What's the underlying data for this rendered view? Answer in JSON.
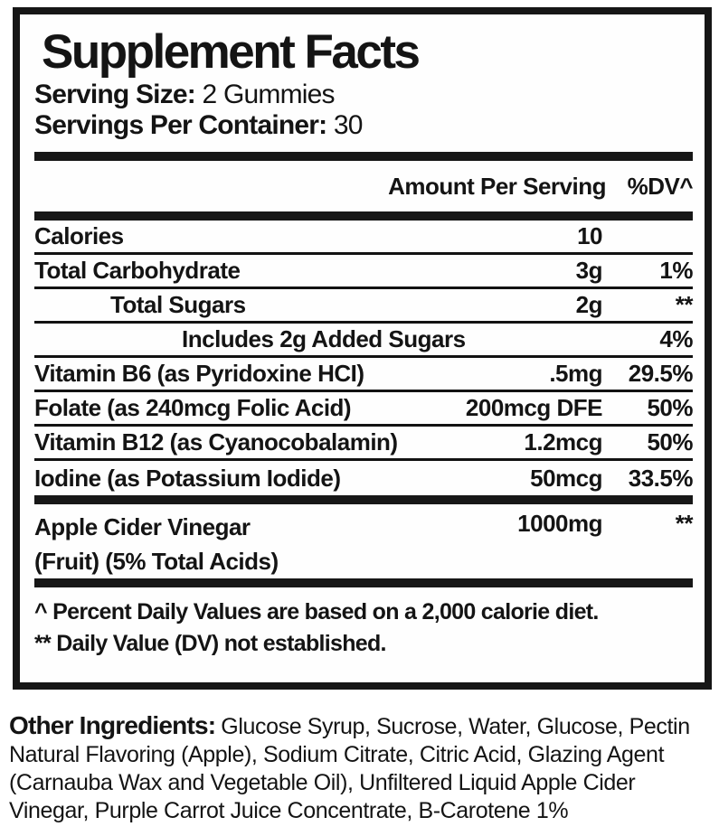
{
  "colors": {
    "ink": "#161616",
    "paper": "#ffffff"
  },
  "label": {
    "title": "Supplement Facts",
    "serving_size_label": "Serving Size:",
    "serving_size_value": "2 Gummies",
    "servings_label": "Servings Per Container:",
    "servings_value": "30",
    "col_amount": "Amount Per Serving",
    "col_dv": "%DV^",
    "rows": [
      {
        "name": "Calories",
        "amount": "10",
        "dv": ""
      },
      {
        "name": "Total Carbohydrate",
        "amount": "3g",
        "dv": "1%"
      },
      {
        "name": "Total Sugars",
        "amount": "2g",
        "dv": "**"
      },
      {
        "name": "Includes 2g Added Sugars",
        "amount": "",
        "dv": "4%"
      },
      {
        "name": "Vitamin B6 (as Pyridoxine HCI)",
        "amount": ".5mg",
        "dv": "29.5%"
      },
      {
        "name": "Folate (as 240mcg Folic Acid)",
        "amount": "200mcg DFE",
        "dv": "50%"
      },
      {
        "name": "Vitamin B12 (as Cyanocobalamin)",
        "amount": "1.2mcg",
        "dv": "50%"
      },
      {
        "name": "Iodine (as Potassium Iodide)",
        "amount": "50mcg",
        "dv": "33.5%"
      }
    ],
    "acv_row": {
      "name": "Apple Cider Vinegar",
      "name_line2": "(Fruit) (5% Total Acids)",
      "amount": "1000mg",
      "dv": "**"
    },
    "footnotes": [
      "^ Percent Daily Values are based on a 2,000 calorie diet.",
      "** Daily Value (DV) not established."
    ]
  },
  "other_ingredients": {
    "label": "Other Ingredients:",
    "text": "Glucose Syrup, Sucrose, Water, Glucose, Pectin Natural Flavoring (Apple), Sodium Citrate, Citric Acid, Glazing Agent (Carnauba Wax and Vegetable Oil), Unfiltered Liquid Apple Cider Vinegar, Purple Carrot Juice Concentrate, B-Carotene 1%"
  }
}
